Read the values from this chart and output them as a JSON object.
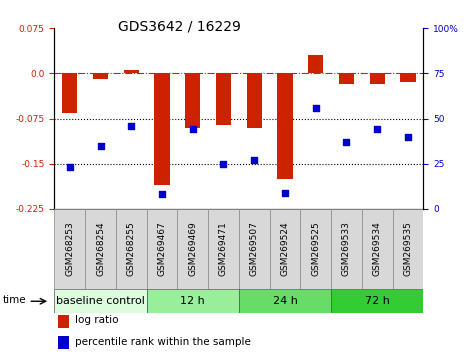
{
  "title": "GDS3642 / 16229",
  "samples": [
    "GSM268253",
    "GSM268254",
    "GSM268255",
    "GSM269467",
    "GSM269469",
    "GSM269471",
    "GSM269507",
    "GSM269524",
    "GSM269525",
    "GSM269533",
    "GSM269534",
    "GSM269535"
  ],
  "log_ratio": [
    -0.065,
    -0.01,
    0.005,
    -0.185,
    -0.09,
    -0.085,
    -0.09,
    -0.175,
    0.03,
    -0.018,
    -0.018,
    -0.015
  ],
  "percentile_rank": [
    23,
    35,
    46,
    8,
    44,
    25,
    27,
    9,
    56,
    37,
    44,
    40
  ],
  "ylim_left": [
    -0.225,
    0.075
  ],
  "ylim_right": [
    0,
    100
  ],
  "bar_color": "#cc2200",
  "dot_color": "#0000cc",
  "groups": [
    {
      "label": "baseline control",
      "start": 0,
      "end": 3,
      "color": "#ddfcdd"
    },
    {
      "label": "12 h",
      "start": 3,
      "end": 6,
      "color": "#99ee99"
    },
    {
      "label": "24 h",
      "start": 6,
      "end": 9,
      "color": "#66dd66"
    },
    {
      "label": "72 h",
      "start": 9,
      "end": 12,
      "color": "#33cc33"
    }
  ],
  "time_label": "time",
  "legend_items": [
    {
      "color": "#cc2200",
      "label": "log ratio"
    },
    {
      "color": "#0000cc",
      "label": "percentile rank within the sample"
    }
  ],
  "title_fontsize": 10,
  "tick_fontsize": 6.5,
  "label_fontsize": 7.5,
  "group_fontsize": 8
}
